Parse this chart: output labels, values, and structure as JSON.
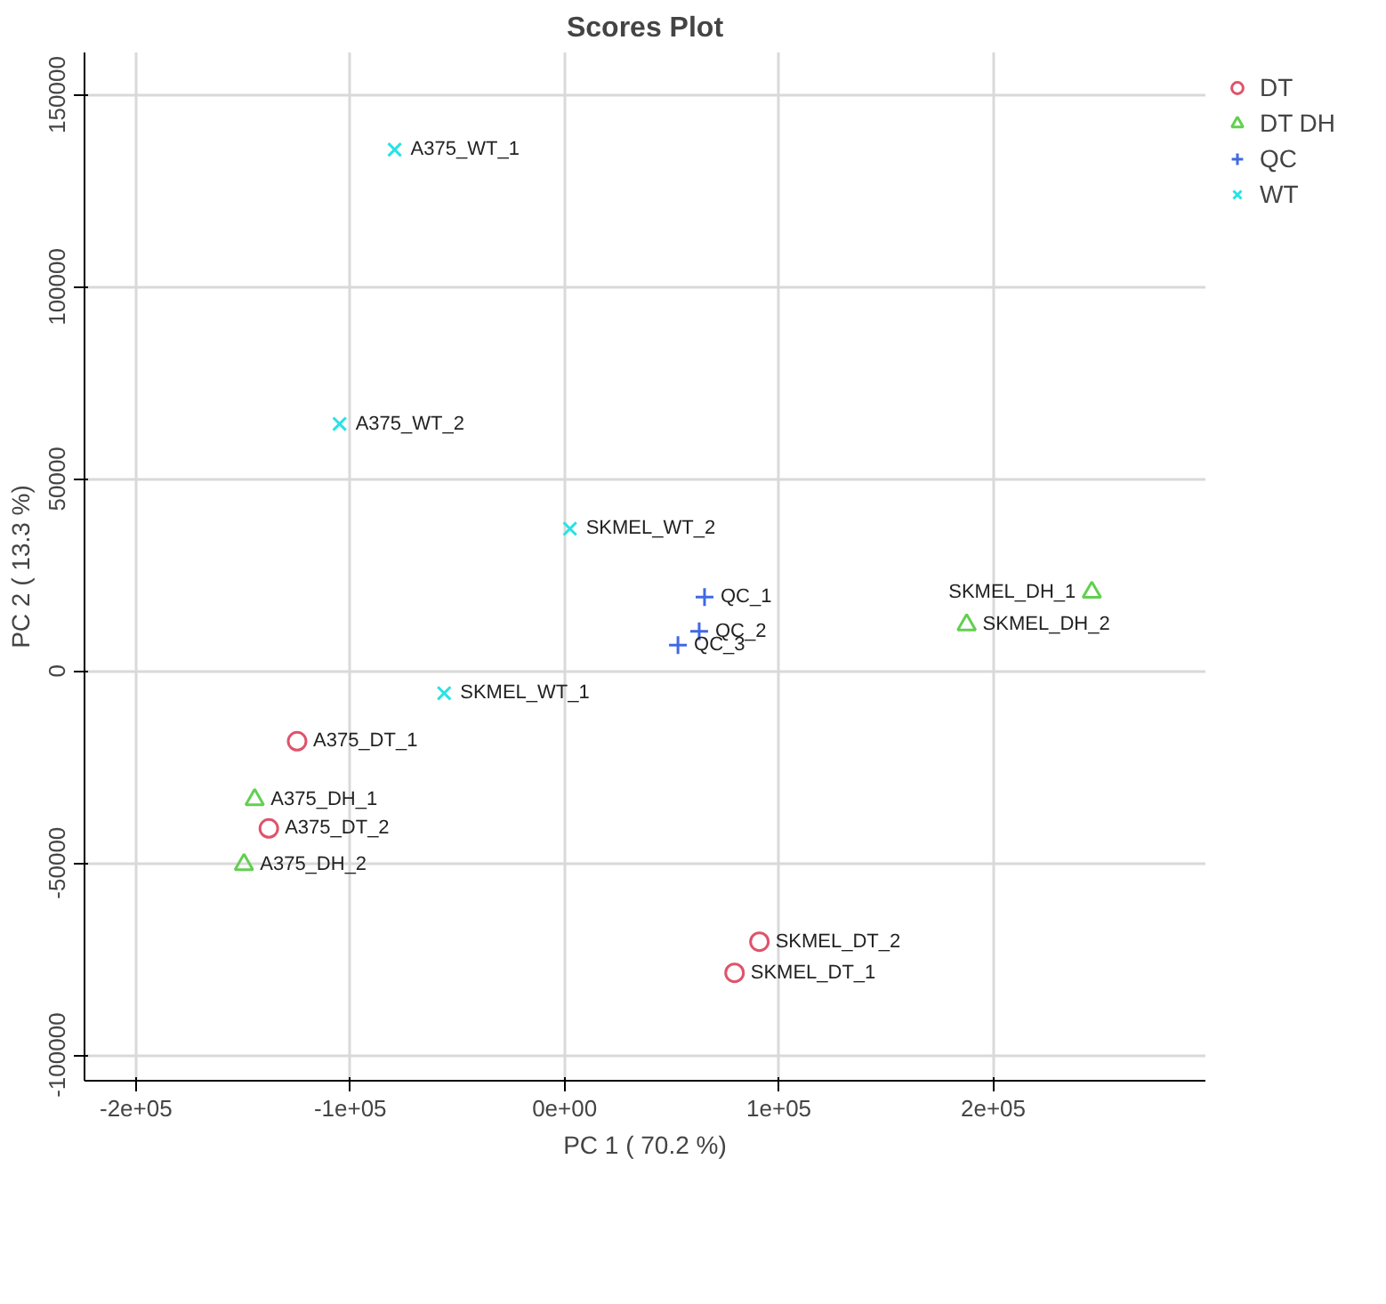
{
  "chart_data": {
    "type": "scatter",
    "title": "Scores Plot",
    "xlabel": "PC 1 ( 70.2 %)",
    "ylabel": "PC 2 ( 13.3 %)",
    "xlim": [
      -224000,
      299000
    ],
    "ylim": [
      -106700,
      161000
    ],
    "xticks": [
      {
        "value": -200000,
        "label": "-2e+05"
      },
      {
        "value": -100000,
        "label": "-1e+05"
      },
      {
        "value": 0,
        "label": "0e+00"
      },
      {
        "value": 100000,
        "label": "1e+05"
      },
      {
        "value": 200000,
        "label": "2e+05"
      }
    ],
    "yticks": [
      -100000,
      -50000,
      0,
      50000,
      100000,
      150000
    ],
    "grid": true,
    "legend": "top right",
    "series": [
      {
        "name": "DT",
        "color": "#df536b",
        "marker": "circle",
        "x": [
          -124800,
          -138000,
          90900,
          79300
        ],
        "values": [
          -18300,
          -41000,
          -70500,
          -78600
        ]
      },
      {
        "name": "DT DH",
        "color": "#61d04f",
        "marker": "triangle",
        "x": [
          -144600,
          -149600,
          246000,
          187600
        ],
        "values": [
          -33500,
          -50400,
          20500,
          12000
        ]
      },
      {
        "name": "QC",
        "color": "#4169e1",
        "marker": "cross",
        "x": [
          65300,
          62800,
          52900
        ],
        "values": [
          19200,
          10300,
          6700
        ]
      },
      {
        "name": "WT",
        "color": "#28e2e5",
        "marker": "x",
        "x": [
          -79300,
          -105000,
          2500,
          -56200
        ],
        "values": [
          135700,
          64300,
          37000,
          -5800
        ]
      }
    ],
    "annotations": [
      {
        "text": "A375_DT_1",
        "x": -124800,
        "y": -18300
      },
      {
        "text": "A375_DT_2",
        "x": -138000,
        "y": -41000
      },
      {
        "text": "SKMEL_DT_2",
        "x": 90900,
        "y": -70500
      },
      {
        "text": "SKMEL_DT_1",
        "x": 79300,
        "y": -78600
      },
      {
        "text": "A375_DH_1",
        "x": -144600,
        "y": -33500
      },
      {
        "text": "A375_DH_2",
        "x": -149600,
        "y": -50400
      },
      {
        "text": "SKMEL_DH_1",
        "x": 246000,
        "y": 20500
      },
      {
        "text": "SKMEL_DH_2",
        "x": 187600,
        "y": 12000
      },
      {
        "text": "QC_1",
        "x": 65300,
        "y": 19200
      },
      {
        "text": "QC_2",
        "x": 62800,
        "y": 10300
      },
      {
        "text": "QC_3",
        "x": 52900,
        "y": 6700
      },
      {
        "text": "A375_WT_1",
        "x": -79300,
        "y": 135700
      },
      {
        "text": "A375_WT_2",
        "x": -105000,
        "y": 64300
      },
      {
        "text": "SKMEL_WT_2",
        "x": 2500,
        "y": 37000
      },
      {
        "text": "SKMEL_WT_1",
        "x": -56200,
        "y": -5800
      }
    ]
  }
}
